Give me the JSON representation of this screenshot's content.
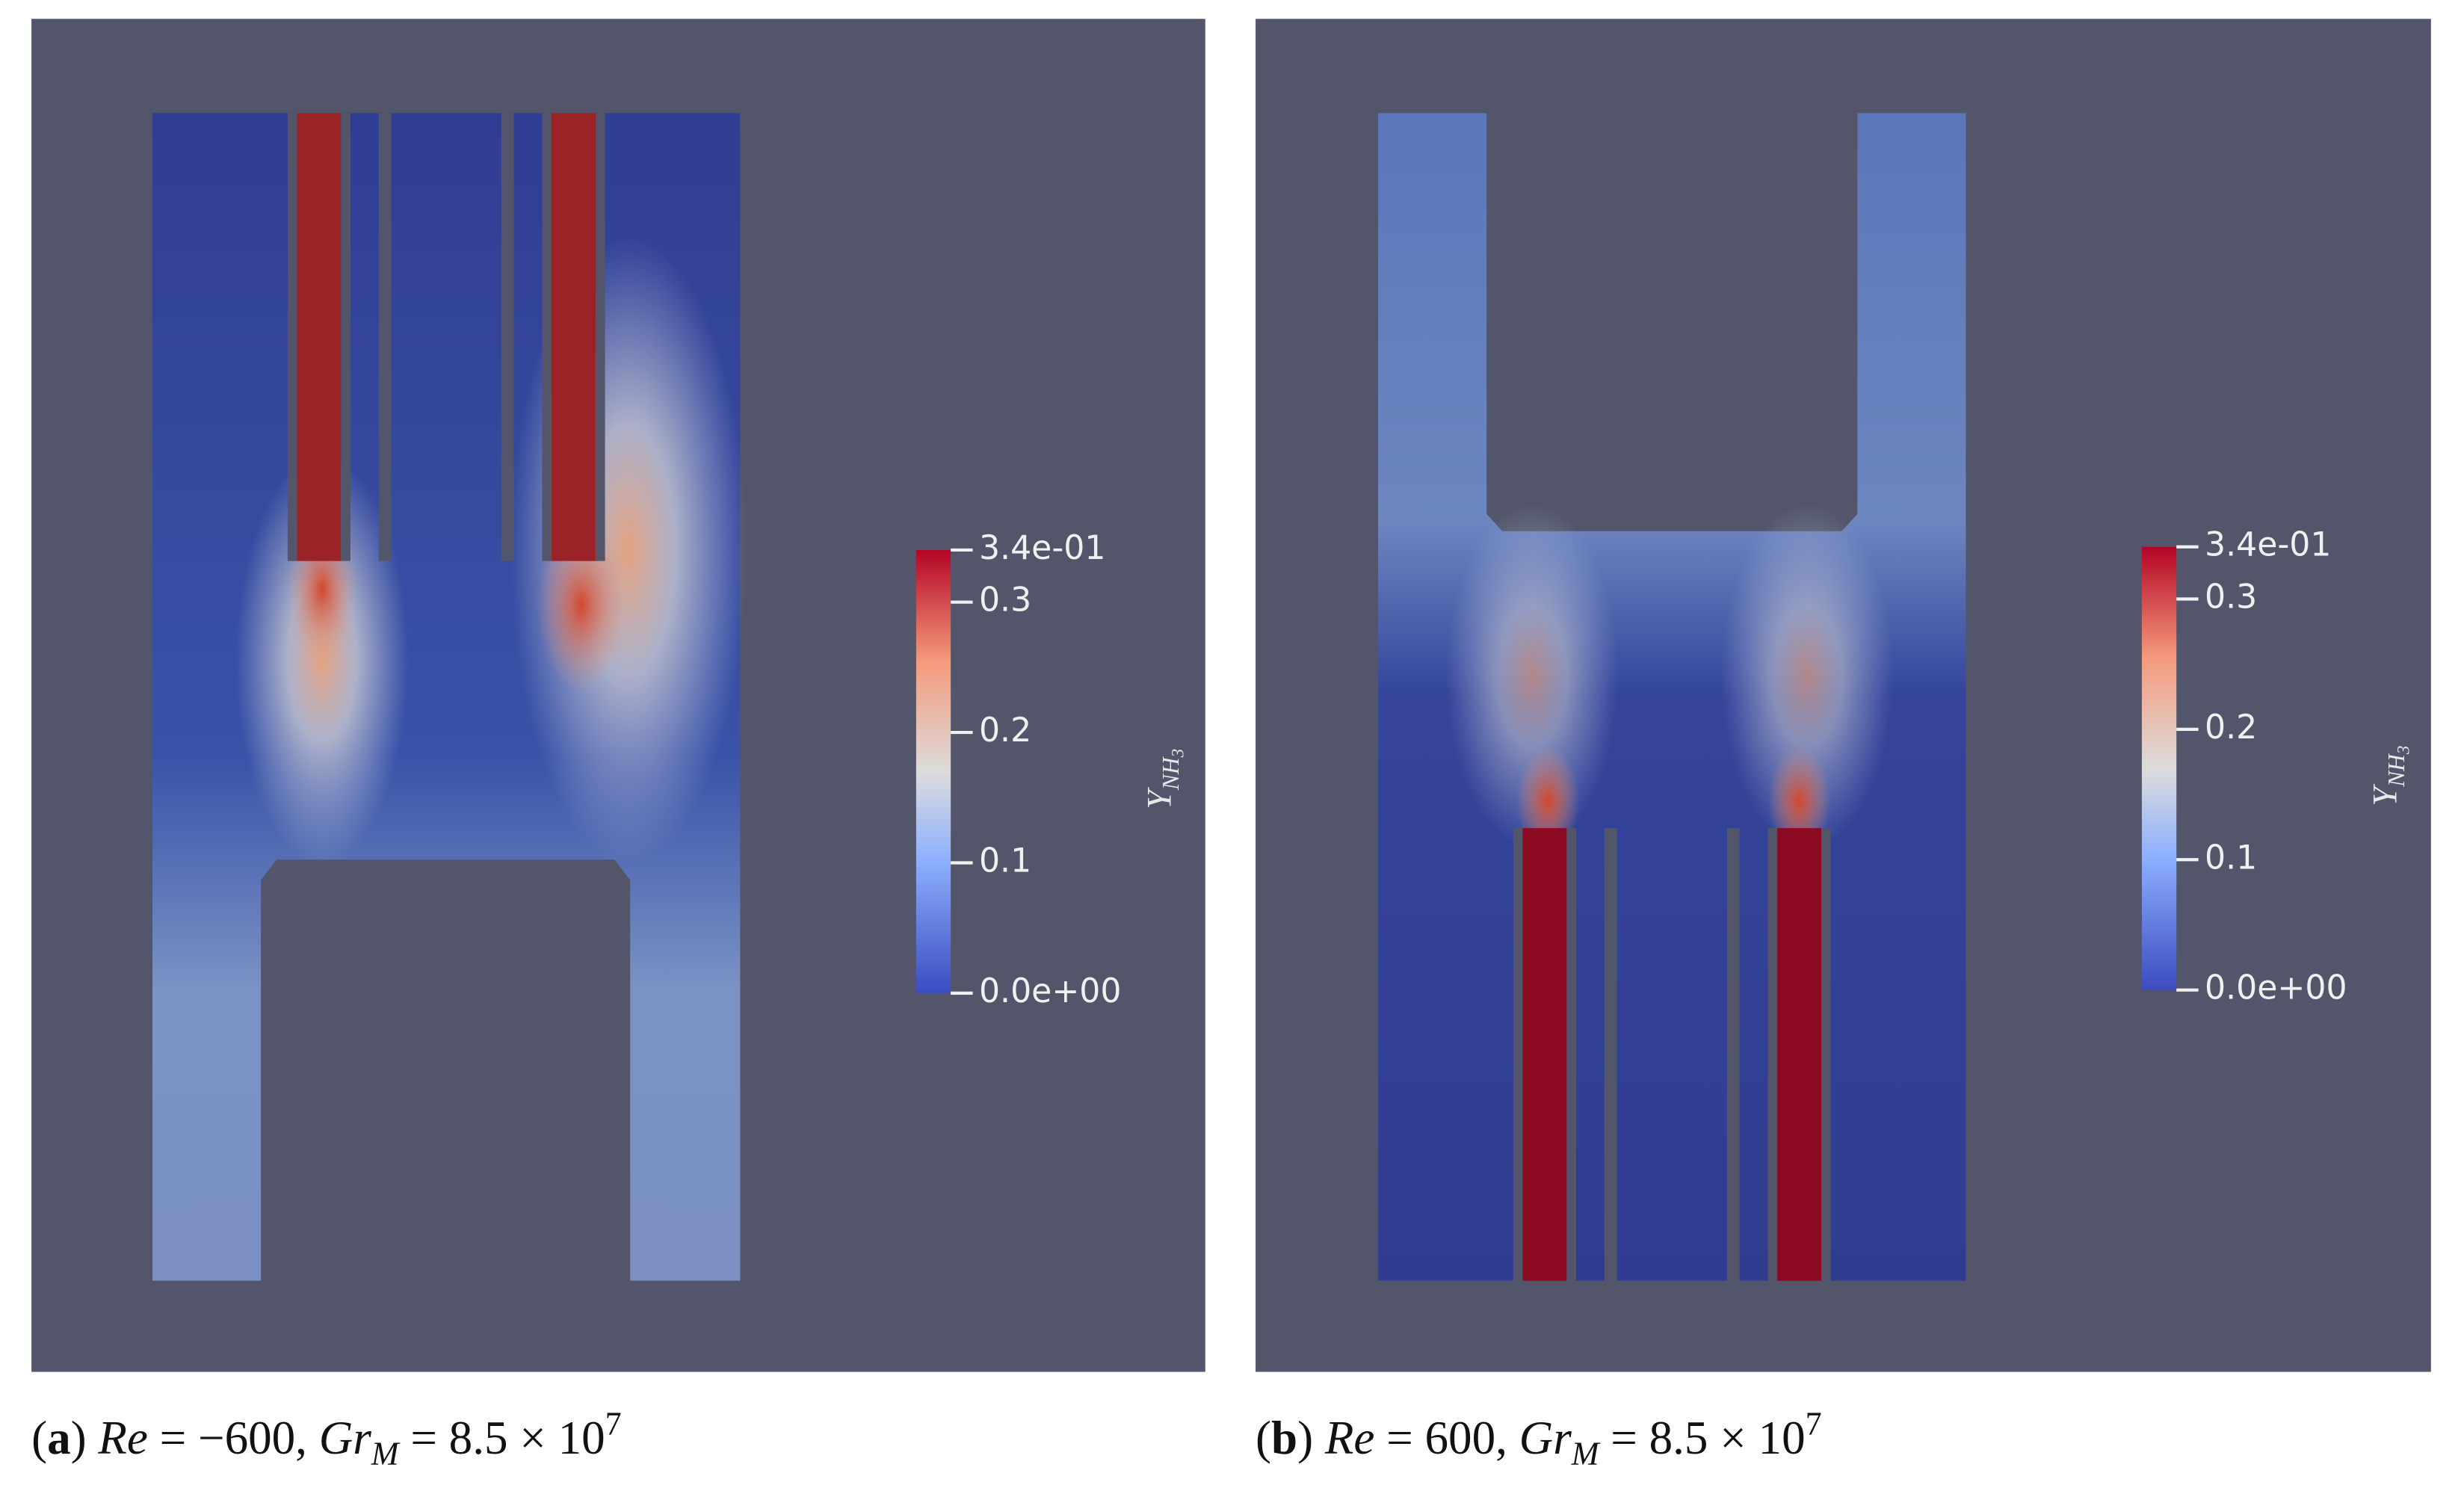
{
  "panels": [
    {
      "caption": {
        "label": "a",
        "re": "Re",
        "re_rest": "= −600,",
        "gr": "Gr",
        "gr_sub": "M",
        "gr_rest": "= 8.5 × 10",
        "exp": "7"
      },
      "colorbar": {
        "title": "Y",
        "title_sub": "NH",
        "title_sub2": "3",
        "range": [
          0,
          0.34
        ],
        "ticks": [
          {
            "value": 0.34,
            "label": "3.4e-01"
          },
          0.3,
          0.2,
          0.1,
          {
            "value": 0,
            "label": "0.0e+00"
          }
        ]
      }
    },
    {
      "caption": {
        "label": "b",
        "re": "Re",
        "re_rest": "= 600,",
        "gr": "Gr",
        "gr_sub": "M",
        "gr_rest": "= 8.5 × 10",
        "exp": "7"
      },
      "colorbar": {
        "title": "Y",
        "title_sub": "NH",
        "title_sub2": "3",
        "range": [
          0,
          0.34
        ],
        "ticks": [
          {
            "value": 0.34,
            "label": "3.4e-01"
          },
          0.3,
          0.2,
          0.1,
          {
            "value": 0,
            "label": "0.0e+00"
          }
        ]
      }
    }
  ]
}
